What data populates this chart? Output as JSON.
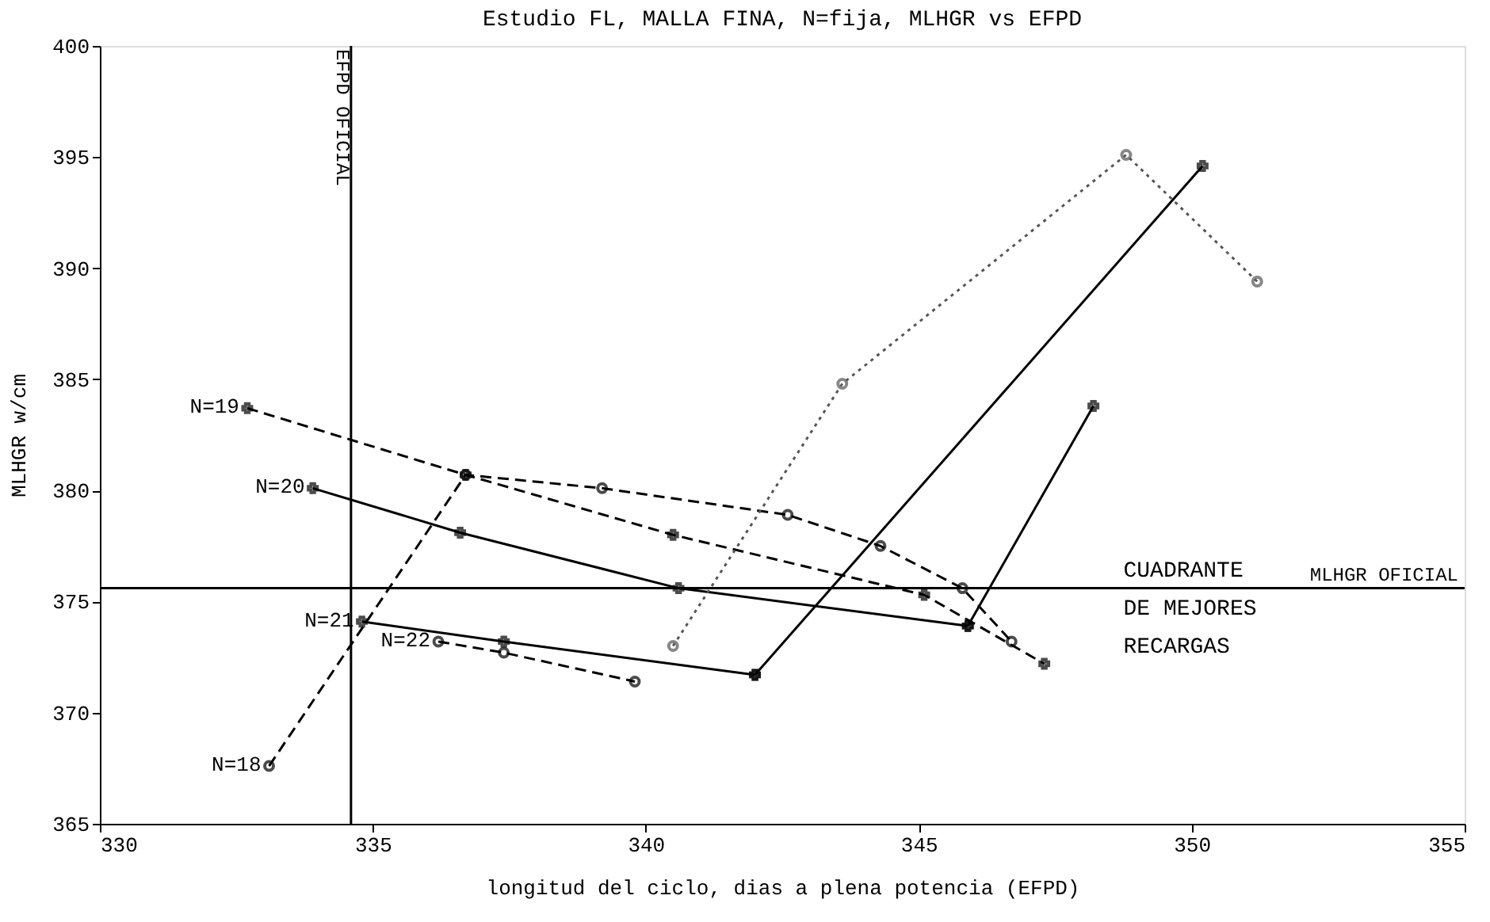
{
  "chart_data": {
    "type": "line",
    "title": "Estudio FL, MALLA FINA, N=fija, MLHGR vs EFPD",
    "xlabel": "longitud del ciclo, dias a plena potencia (EFPD)",
    "ylabel": "MLHGR w/cm",
    "xlim": [
      330,
      355
    ],
    "xticks": [
      330,
      335,
      340,
      345,
      350,
      355
    ],
    "ylim": [
      365,
      400
    ],
    "yticks": [
      365,
      370,
      375,
      380,
      385,
      390,
      395,
      400
    ],
    "grid": false,
    "series": [
      {
        "name": "N=19",
        "color": "#000000",
        "line_style": "dashed",
        "marker": "cross",
        "x": [
          332.7,
          336.7,
          340.5,
          345.1,
          347.3
        ],
        "values": [
          383.7,
          380.7,
          378.0,
          375.3,
          372.2
        ]
      },
      {
        "name": "N=20",
        "color": "#000000",
        "line_style": "solid",
        "marker": "cross",
        "x": [
          333.9,
          336.6,
          340.6,
          345.9
        ],
        "values": [
          380.1,
          378.1,
          375.6,
          373.9
        ]
      },
      {
        "name": "N=21",
        "color": "#000000",
        "line_style": "solid",
        "marker": "cross",
        "x": [
          334.8,
          337.4,
          342.0
        ],
        "values": [
          374.1,
          373.2,
          371.7
        ]
      },
      {
        "name": "N=22",
        "color": "#000000",
        "line_style": "dashed",
        "marker": "circle",
        "x": [
          336.2,
          337.4,
          339.8
        ],
        "values": [
          373.2,
          372.7,
          371.4
        ]
      },
      {
        "name": "N=18",
        "color": "#000000",
        "line_style": "dashed",
        "marker": "circle",
        "x": [
          333.1,
          336.7,
          339.2,
          342.6,
          344.3,
          345.8,
          346.7
        ],
        "values": [
          367.6,
          380.7,
          380.1,
          378.9,
          377.5,
          375.6,
          373.2
        ]
      },
      {
        "color": "#000000",
        "line_style": "solid",
        "marker": "cross",
        "x": [
          345.9,
          348.2
        ],
        "values": [
          373.9,
          383.8
        ]
      },
      {
        "color": "#000000",
        "line_style": "solid",
        "marker": "cross",
        "x": [
          342.0,
          350.2
        ],
        "values": [
          371.7,
          394.6
        ]
      },
      {
        "color": "#555555",
        "line_style": "dotted",
        "marker": "circle",
        "x": [
          340.5,
          343.6,
          348.8,
          351.2
        ],
        "values": [
          373.0,
          384.8,
          395.1,
          389.4
        ]
      }
    ],
    "ref_lines": [
      {
        "axis": "x",
        "value": 334.6,
        "label": "EFPD OFICIAL",
        "color": "#000000"
      },
      {
        "axis": "y",
        "value": 375.6,
        "label": "MLHGR OFICIAL",
        "color": "#000000"
      }
    ],
    "annotations": [
      "CUADRANTE DE MEJORES RECARGAS"
    ]
  }
}
